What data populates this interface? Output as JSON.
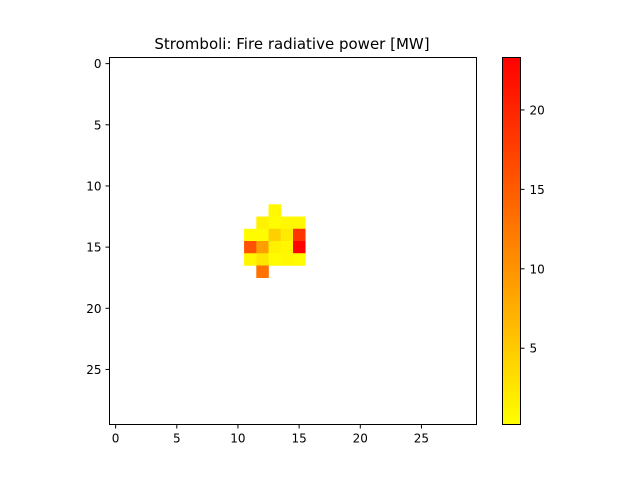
{
  "chart_data": {
    "type": "heatmap",
    "title": "Stromboli: Fire radiative power [MW]",
    "xlabel": "",
    "ylabel": "",
    "grid_size": [
      30,
      30
    ],
    "xlim": [
      -0.5,
      29.5
    ],
    "ylim": [
      29.5,
      -0.5
    ],
    "x_ticks": [
      0,
      5,
      10,
      15,
      20,
      25
    ],
    "y_ticks": [
      0,
      5,
      10,
      15,
      20,
      25
    ],
    "colormap": [
      "#ffff00",
      "#ff0000"
    ],
    "color_range": [
      0.2,
      23.3
    ],
    "colorbar_ticks": [
      5,
      10,
      15,
      20
    ],
    "cells": [
      {
        "row": 12,
        "col": 13,
        "value": 0.8
      },
      {
        "row": 13,
        "col": 12,
        "value": 1.5
      },
      {
        "row": 13,
        "col": 13,
        "value": 0.6
      },
      {
        "row": 13,
        "col": 14,
        "value": 0.8
      },
      {
        "row": 13,
        "col": 15,
        "value": 0.8
      },
      {
        "row": 14,
        "col": 11,
        "value": 0.5
      },
      {
        "row": 14,
        "col": 12,
        "value": 0.6
      },
      {
        "row": 14,
        "col": 13,
        "value": 4.5
      },
      {
        "row": 14,
        "col": 14,
        "value": 2.0
      },
      {
        "row": 14,
        "col": 15,
        "value": 18.5
      },
      {
        "row": 15,
        "col": 11,
        "value": 16.0
      },
      {
        "row": 15,
        "col": 12,
        "value": 9.0
      },
      {
        "row": 15,
        "col": 13,
        "value": 1.5
      },
      {
        "row": 15,
        "col": 14,
        "value": 1.0
      },
      {
        "row": 15,
        "col": 15,
        "value": 23.0
      },
      {
        "row": 16,
        "col": 11,
        "value": 1.0
      },
      {
        "row": 16,
        "col": 12,
        "value": 2.5
      },
      {
        "row": 16,
        "col": 13,
        "value": 0.5
      },
      {
        "row": 16,
        "col": 14,
        "value": 0.8
      },
      {
        "row": 16,
        "col": 15,
        "value": 0.6
      },
      {
        "row": 17,
        "col": 12,
        "value": 13.0
      }
    ]
  }
}
